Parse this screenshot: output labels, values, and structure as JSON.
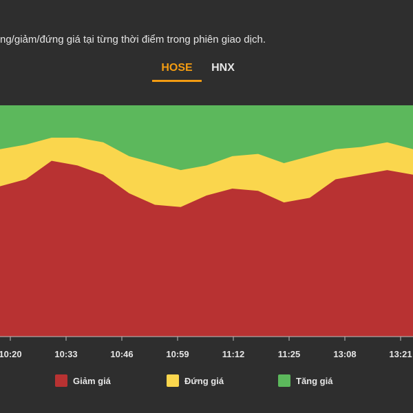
{
  "header": {
    "subtitle": "ng/giảm/đứng giá tại từng thời điểm trong phiên giao dịch."
  },
  "tabs": [
    {
      "label": "HOSE",
      "active": true
    },
    {
      "label": "HNX",
      "active": false
    }
  ],
  "legend": {
    "items": [
      {
        "label": "Giảm giá",
        "color": "#b83232"
      },
      {
        "label": "Đứng giá",
        "color": "#fad64d"
      },
      {
        "label": "Tăng giá",
        "color": "#5cb85c"
      }
    ]
  },
  "chart_data": {
    "type": "area",
    "stacked": true,
    "normalized_to_percent": true,
    "x_ticks": [
      "10:20",
      "10:33",
      "10:46",
      "10:59",
      "11:12",
      "11:25",
      "13:08",
      "13:21"
    ],
    "x": [
      "10:14",
      "10:20",
      "10:26",
      "10:33",
      "10:39",
      "10:46",
      "10:52",
      "10:59",
      "11:05",
      "11:12",
      "11:18",
      "11:25",
      "11:31",
      "13:08",
      "13:14",
      "13:21",
      "13:27"
    ],
    "series": [
      {
        "name": "Giảm giá",
        "color": "#b83232",
        "values": [
          65,
          68,
          76,
          74,
          70,
          62,
          57,
          56,
          61,
          64,
          63,
          58,
          60,
          68,
          70,
          72,
          70
        ]
      },
      {
        "name": "Đứng giá",
        "color": "#fad64d",
        "values": [
          16,
          15,
          10,
          12,
          14,
          16,
          18,
          16,
          13,
          14,
          16,
          17,
          18,
          13,
          12,
          12,
          11
        ]
      },
      {
        "name": "Tăng giá",
        "color": "#5cb85c",
        "values": [
          19,
          17,
          14,
          14,
          16,
          22,
          25,
          28,
          26,
          22,
          21,
          25,
          22,
          19,
          18,
          16,
          19
        ]
      }
    ],
    "ylim": [
      0,
      100
    ],
    "grid": false,
    "legend_position": "bottom"
  }
}
